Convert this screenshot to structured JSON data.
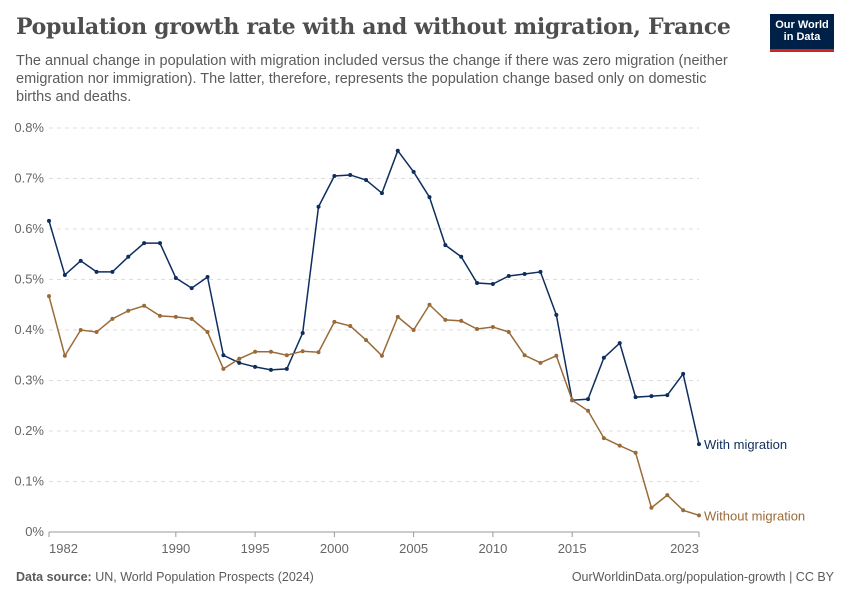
{
  "header": {
    "title": "Population growth rate with and without migration, France",
    "subtitle": "The annual change in population with migration included versus the change if there was zero migration (neither emigration nor immigration). The latter, therefore, represents the population change based only on domestic births and deaths.",
    "logo": "Our World in Data"
  },
  "footer": {
    "source_label": "Data source:",
    "source": "UN, World Population Prospects (2024)",
    "link": "OurWorldinData.org/population-growth | CC BY"
  },
  "chart_data": {
    "type": "line",
    "title": "Population growth rate with and without migration, France",
    "xlim": [
      1982,
      2023
    ],
    "ylim": [
      0,
      0.8
    ],
    "y_ticks": [
      "0%",
      "0.1%",
      "0.2%",
      "0.3%",
      "0.4%",
      "0.5%",
      "0.6%",
      "0.7%",
      "0.8%"
    ],
    "x_ticks": [
      "1982",
      "1990",
      "1995",
      "2000",
      "2005",
      "2010",
      "2015",
      "2023"
    ],
    "grid": "horizontal dashed",
    "legend": "inline labels at line ends",
    "x": [
      1982,
      1983,
      1984,
      1985,
      1986,
      1987,
      1988,
      1989,
      1990,
      1991,
      1992,
      1993,
      1994,
      1995,
      1996,
      1997,
      1998,
      1999,
      2000,
      2001,
      2002,
      2003,
      2004,
      2005,
      2006,
      2007,
      2008,
      2009,
      2010,
      2011,
      2012,
      2013,
      2014,
      2015,
      2016,
      2017,
      2018,
      2019,
      2020,
      2021,
      2022,
      2023
    ],
    "series": [
      {
        "name": "With migration",
        "color": "#0e2e5e",
        "values": [
          0.616,
          0.509,
          0.537,
          0.515,
          0.515,
          0.545,
          0.572,
          0.572,
          0.503,
          0.483,
          0.505,
          0.35,
          0.335,
          0.327,
          0.321,
          0.323,
          0.394,
          0.644,
          0.705,
          0.707,
          0.697,
          0.671,
          0.755,
          0.713,
          0.663,
          0.568,
          0.545,
          0.493,
          0.491,
          0.507,
          0.511,
          0.515,
          0.43,
          0.261,
          0.263,
          0.345,
          0.374,
          0.267,
          0.269,
          0.271,
          0.313,
          0.174
        ]
      },
      {
        "name": "Without migration",
        "color": "#9a6b38",
        "values": [
          0.467,
          0.349,
          0.4,
          0.396,
          0.422,
          0.438,
          0.448,
          0.428,
          0.426,
          0.422,
          0.396,
          0.323,
          0.343,
          0.357,
          0.357,
          0.35,
          0.358,
          0.356,
          0.416,
          0.408,
          0.38,
          0.349,
          0.426,
          0.4,
          0.45,
          0.42,
          0.418,
          0.402,
          0.406,
          0.396,
          0.35,
          0.335,
          0.349,
          0.261,
          0.24,
          0.186,
          0.171,
          0.157,
          0.048,
          0.073,
          0.043,
          0.033
        ]
      }
    ]
  }
}
